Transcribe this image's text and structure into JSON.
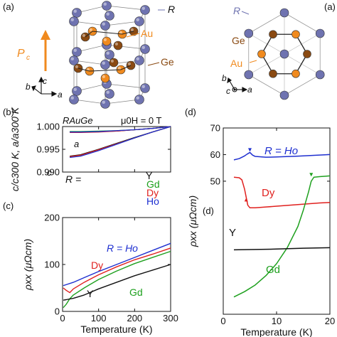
{
  "figure": {
    "colors": {
      "R": "#6f73b0",
      "Au": "#f08a1e",
      "Ge": "#8a4a12",
      "Y": "#111111",
      "Gd": "#1ea01e",
      "Dy": "#e0201e",
      "Ho": "#1e2fd0",
      "Pc": "#f08a1e"
    },
    "panel_a": {
      "tag": "(a)",
      "labels": {
        "R": "R",
        "Au": "Au",
        "Ge": "Ge",
        "Pc": "P",
        "Pc_sub": "c"
      },
      "axes": {
        "b": "b",
        "c": "c",
        "a": "a"
      }
    },
    "panel_a_top": {
      "labels": {
        "R": "R",
        "Ge": "Ge",
        "Au": "Au"
      },
      "axes": {
        "b": "b",
        "c": "c",
        "a": "a"
      }
    },
    "panel_b": {
      "tag": "(b)",
      "title_left": "RAuGe",
      "title_right": "μ0H = 0 T",
      "legend_title": "R =",
      "curve_label_a": "a",
      "curve_label_c": "c"
    },
    "panel_c": {
      "tag": "(c)",
      "label_R": "R = Ho"
    },
    "panel_d": {
      "tag": "(d)",
      "label_R": "R = Ho",
      "stray_tag": "(d)"
    }
  },
  "chart_data": [
    {
      "id": "b",
      "type": "line",
      "title": "",
      "xlabel": "",
      "ylabel": "c/c300 K, a/a300 K",
      "xlim": [
        0,
        300
      ],
      "ylim": [
        0.99,
        1.0
      ],
      "xticks": [
        0,
        100,
        200,
        300
      ],
      "yticks": [
        "0.990",
        "0.995",
        "1.000"
      ],
      "series": [
        {
          "name": "Y",
          "axis": "a",
          "x": [
            20,
            50,
            100,
            150,
            200,
            250,
            300
          ],
          "y": [
            0.9988,
            0.9988,
            0.9989,
            0.999,
            0.9993,
            0.9996,
            1.0
          ]
        },
        {
          "name": "Gd",
          "axis": "a",
          "x": [
            20,
            50,
            100,
            150,
            200,
            250,
            300
          ],
          "y": [
            0.9989,
            0.9989,
            0.999,
            0.9991,
            0.9993,
            0.9996,
            1.0
          ]
        },
        {
          "name": "Dy",
          "axis": "a",
          "x": [
            20,
            50,
            100,
            150,
            200,
            250,
            300
          ],
          "y": [
            0.9987,
            0.9987,
            0.9988,
            0.999,
            0.9993,
            0.9996,
            1.0
          ]
        },
        {
          "name": "Ho",
          "axis": "a",
          "x": [
            20,
            50,
            100,
            150,
            200,
            250,
            300
          ],
          "y": [
            0.9988,
            0.9988,
            0.9989,
            0.9991,
            0.9993,
            0.9996,
            1.0
          ]
        },
        {
          "name": "Y",
          "axis": "c",
          "x": [
            20,
            50,
            100,
            150,
            200,
            250,
            300
          ],
          "y": [
            0.9935,
            0.9938,
            0.995,
            0.9963,
            0.9976,
            0.9988,
            1.0
          ]
        },
        {
          "name": "Gd",
          "axis": "c",
          "x": [
            20,
            50,
            100,
            150,
            200,
            250,
            300
          ],
          "y": [
            0.9933,
            0.9936,
            0.9948,
            0.9962,
            0.9975,
            0.9988,
            1.0
          ]
        },
        {
          "name": "Dy",
          "axis": "c",
          "x": [
            20,
            50,
            100,
            150,
            200,
            250,
            300
          ],
          "y": [
            0.9934,
            0.9937,
            0.9949,
            0.9962,
            0.9975,
            0.9988,
            1.0
          ]
        },
        {
          "name": "Ho",
          "axis": "c",
          "x": [
            20,
            50,
            100,
            150,
            200,
            250,
            300
          ],
          "y": [
            0.9932,
            0.9935,
            0.9947,
            0.9961,
            0.9975,
            0.9988,
            1.0
          ]
        }
      ]
    },
    {
      "id": "c",
      "type": "line",
      "title": "",
      "xlabel": "Temperature (K)",
      "ylabel": "ρxx (μΩcm)",
      "xlim": [
        0,
        300
      ],
      "ylim": [
        0,
        200
      ],
      "xticks": [
        0,
        100,
        200,
        300
      ],
      "yticks": [
        0,
        100,
        200
      ],
      "series": [
        {
          "name": "Ho",
          "x": [
            2,
            10,
            30,
            60,
            100,
            150,
            200,
            250,
            300
          ],
          "y": [
            55,
            57,
            62,
            72,
            85,
            100,
            115,
            130,
            145
          ]
        },
        {
          "name": "Dy",
          "x": [
            2,
            10,
            20,
            30,
            60,
            100,
            150,
            200,
            250,
            300
          ],
          "y": [
            50,
            45,
            40,
            48,
            62,
            78,
            95,
            110,
            122,
            135
          ]
        },
        {
          "name": "Gd",
          "x": [
            2,
            10,
            20,
            30,
            60,
            100,
            150,
            200,
            250,
            300
          ],
          "y": [
            8,
            15,
            27,
            35,
            50,
            68,
            86,
            102,
            115,
            128
          ]
        },
        {
          "name": "Y",
          "x": [
            2,
            10,
            30,
            60,
            100,
            150,
            200,
            250,
            300
          ],
          "y": [
            24,
            25,
            28,
            35,
            48,
            62,
            76,
            88,
            100
          ]
        }
      ]
    },
    {
      "id": "d",
      "type": "line",
      "title": "",
      "xlabel": "Temperature (K)",
      "ylabel": "ρxx (μΩcm)",
      "xlim": [
        0,
        20
      ],
      "ylim": [
        0,
        70
      ],
      "xticks": [
        0,
        10,
        20
      ],
      "xtick_labels": [
        "0",
        "10",
        "20"
      ],
      "yticks": [
        50,
        60,
        70
      ],
      "series": [
        {
          "name": "Ho",
          "x": [
            2,
            3,
            4,
            4.5,
            5,
            5.5,
            6,
            8,
            10,
            14,
            18,
            20
          ],
          "y": [
            58,
            58.5,
            59.5,
            60.2,
            60.8,
            59.8,
            59.3,
            59.0,
            59.1,
            59.4,
            59.8,
            60.0
          ]
        },
        {
          "name": "Dy",
          "x": [
            2,
            3,
            3.5,
            4,
            4.3,
            4.6,
            5,
            6,
            8,
            10,
            14,
            18,
            20
          ],
          "y": [
            51.5,
            51.3,
            50.5,
            47,
            44,
            41,
            40,
            40,
            40.3,
            40.6,
            41.2,
            41.8,
            42.0
          ]
        },
        {
          "name": "Gd",
          "x": [
            2,
            4,
            6,
            8,
            10,
            12,
            14,
            15,
            16,
            16.5,
            17,
            18,
            20
          ],
          "y": [
            6.5,
            8.5,
            11,
            14.5,
            19,
            25,
            33,
            39,
            46,
            50,
            51.5,
            51.7,
            52.0
          ]
        },
        {
          "name": "Y",
          "x": [
            2,
            5,
            10,
            15,
            20
          ],
          "y": [
            24.2,
            24.3,
            24.5,
            24.8,
            25.0
          ]
        }
      ]
    }
  ]
}
